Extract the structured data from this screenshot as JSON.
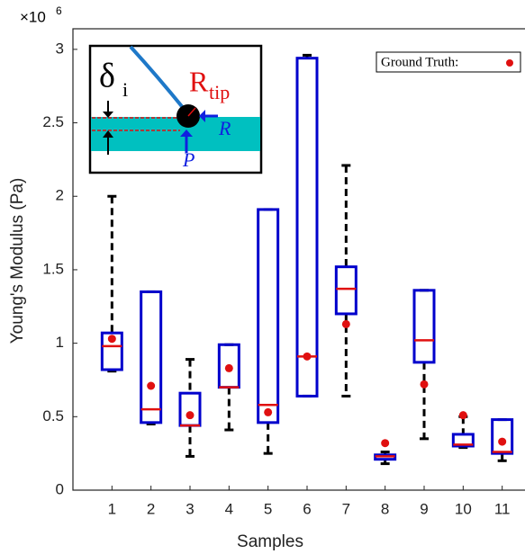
{
  "chart_data": {
    "type": "box",
    "exponent_label": {
      "base": "×10",
      "power": "6"
    },
    "xlabel": "Samples",
    "ylabel": "Young's Modulus (Pa)",
    "categories": [
      "1",
      "2",
      "3",
      "4",
      "5",
      "6",
      "7",
      "8",
      "9",
      "10",
      "11"
    ],
    "xlim": [
      0,
      12
    ],
    "ylim": [
      0,
      3.14
    ],
    "yticks": [
      0,
      0.5,
      1,
      1.5,
      2,
      2.5,
      3
    ],
    "box_color": "#0000cc",
    "median_color": "#e01010",
    "whisker_color": "#000000",
    "min": [
      0.81,
      0.45,
      0.23,
      0.41,
      0.25,
      0.64,
      0.64,
      0.18,
      0.35,
      0.29,
      0.2
    ],
    "q1": [
      0.82,
      0.46,
      0.44,
      0.7,
      0.46,
      0.64,
      1.2,
      0.21,
      0.87,
      0.3,
      0.25
    ],
    "median": [
      0.98,
      0.55,
      0.44,
      0.7,
      0.58,
      0.91,
      1.37,
      0.23,
      1.02,
      0.31,
      0.26
    ],
    "q3": [
      1.07,
      1.35,
      0.66,
      0.99,
      1.91,
      2.94,
      1.52,
      0.24,
      1.36,
      0.38,
      0.48
    ],
    "max": [
      2.0,
      1.35,
      0.89,
      0.99,
      1.91,
      2.96,
      2.21,
      0.26,
      1.36,
      0.5,
      0.48
    ],
    "ground_truth": {
      "name": "Ground Truth:",
      "color": "#e01010",
      "values": [
        1.03,
        0.71,
        0.51,
        0.83,
        0.53,
        0.91,
        1.13,
        0.32,
        0.72,
        0.51,
        0.33
      ]
    },
    "inset": {
      "delta": "δ",
      "delta_sub": "i",
      "r_tip": "R",
      "r_tip_sub": "tip",
      "r": "R",
      "p": "P"
    }
  }
}
